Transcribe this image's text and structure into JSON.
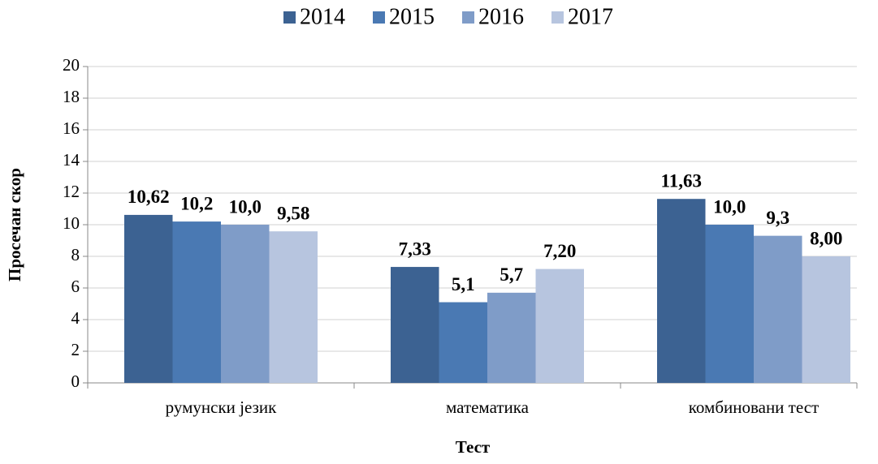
{
  "chart_data": {
    "type": "bar",
    "categories": [
      "румунски језик",
      "математика",
      "комбиновани тест"
    ],
    "series": [
      {
        "name": "2014",
        "color": "#3c6292",
        "values": [
          10.62,
          7.33,
          11.63
        ],
        "value_labels": [
          "10,62",
          "7,33",
          "11,63"
        ]
      },
      {
        "name": "2015",
        "color": "#4a79b3",
        "values": [
          10.2,
          5.1,
          10.0
        ],
        "value_labels": [
          "10,2",
          "5,1",
          "10,0"
        ]
      },
      {
        "name": "2016",
        "color": "#7f9cc8",
        "values": [
          10.0,
          5.7,
          9.3
        ],
        "value_labels": [
          "10,0",
          "5,7",
          "9,3"
        ]
      },
      {
        "name": "2017",
        "color": "#b7c5df",
        "values": [
          9.58,
          7.2,
          8.0
        ],
        "value_labels": [
          "9,58",
          "7,20",
          "8,00"
        ]
      }
    ],
    "ylabel": "Просечан скор",
    "xlabel": "Тест",
    "ylim": [
      0,
      20
    ],
    "yticks": [
      0,
      2,
      4,
      6,
      8,
      10,
      12,
      14,
      16,
      18,
      20
    ],
    "grid": true,
    "legend": "top"
  }
}
